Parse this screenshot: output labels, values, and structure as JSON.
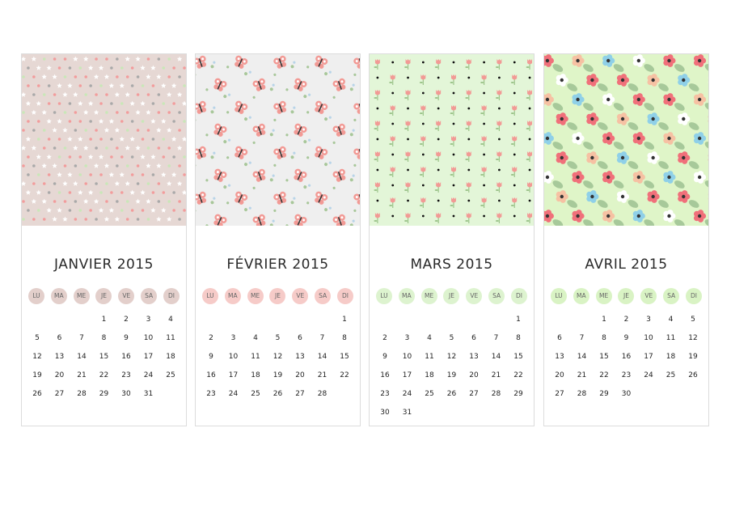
{
  "months": [
    {
      "title": "JANVIER 2015",
      "pattern": "stars-dots",
      "colors": {
        "background": "#e6d8d4",
        "dot1": "#f29c9c",
        "dot2": "#a9a9a9",
        "dot3": "#c9e7b8",
        "star": "#ffffff",
        "header_circle": "#e3cfcb"
      },
      "weekdays": [
        "LU",
        "MA",
        "ME",
        "JE",
        "VE",
        "SA",
        "DI"
      ],
      "weeks": [
        [
          "",
          "",
          "",
          "1",
          "2",
          "3",
          "4"
        ],
        [
          "5",
          "6",
          "7",
          "8",
          "9",
          "10",
          "11"
        ],
        [
          "12",
          "13",
          "14",
          "15",
          "16",
          "17",
          "18"
        ],
        [
          "19",
          "20",
          "21",
          "22",
          "23",
          "24",
          "25"
        ],
        [
          "26",
          "27",
          "28",
          "29",
          "30",
          "31",
          ""
        ]
      ]
    },
    {
      "title": "FÉVRIER 2015",
      "pattern": "butterflies",
      "colors": {
        "background": "#efefef",
        "wing": "#f29a95",
        "accent": "#a8c79a",
        "blue": "#b8d4e8",
        "header_circle": "#f6cbc8"
      },
      "weekdays": [
        "LU",
        "MA",
        "ME",
        "JE",
        "VE",
        "SA",
        "DI"
      ],
      "weeks": [
        [
          "",
          "",
          "",
          "",
          "",
          "",
          "1"
        ],
        [
          "2",
          "3",
          "4",
          "5",
          "6",
          "7",
          "8"
        ],
        [
          "9",
          "10",
          "11",
          "12",
          "13",
          "14",
          "15"
        ],
        [
          "16",
          "17",
          "18",
          "19",
          "20",
          "21",
          "22"
        ],
        [
          "23",
          "24",
          "25",
          "26",
          "27",
          "28",
          ""
        ]
      ]
    },
    {
      "title": "MARS 2015",
      "pattern": "tulips",
      "colors": {
        "background": "#e3f6d8",
        "tulip": "#f29a95",
        "stem": "#9cc48a",
        "dot": "#111111",
        "header_circle": "#ddf3cf"
      },
      "weekdays": [
        "LU",
        "MA",
        "ME",
        "JE",
        "VE",
        "SA",
        "DI"
      ],
      "weeks": [
        [
          "",
          "",
          "",
          "",
          "",
          "",
          "1"
        ],
        [
          "2",
          "3",
          "4",
          "5",
          "6",
          "7",
          "8"
        ],
        [
          "9",
          "10",
          "11",
          "12",
          "13",
          "14",
          "15"
        ],
        [
          "16",
          "17",
          "18",
          "19",
          "20",
          "21",
          "22"
        ],
        [
          "23",
          "24",
          "25",
          "26",
          "27",
          "28",
          "29"
        ],
        [
          "30",
          "31",
          "",
          "",
          "",
          "",
          ""
        ]
      ]
    },
    {
      "title": "AVRIL 2015",
      "pattern": "flowers",
      "colors": {
        "background": "#dff5c8",
        "pink": "#f0707a",
        "peach": "#f6c1a3",
        "blue": "#8fd0e8",
        "white": "#ffffff",
        "leaf": "#a7c99a",
        "header_circle": "#d9f3c4"
      },
      "weekdays": [
        "LU",
        "MA",
        "ME",
        "JE",
        "VE",
        "SA",
        "DI"
      ],
      "weeks": [
        [
          "",
          "",
          "1",
          "2",
          "3",
          "4",
          "5"
        ],
        [
          "6",
          "7",
          "8",
          "9",
          "10",
          "11",
          "12"
        ],
        [
          "13",
          "14",
          "15",
          "16",
          "17",
          "18",
          "19"
        ],
        [
          "20",
          "21",
          "22",
          "23",
          "24",
          "25",
          "26"
        ],
        [
          "27",
          "28",
          "29",
          "30",
          "",
          "",
          ""
        ]
      ]
    }
  ]
}
